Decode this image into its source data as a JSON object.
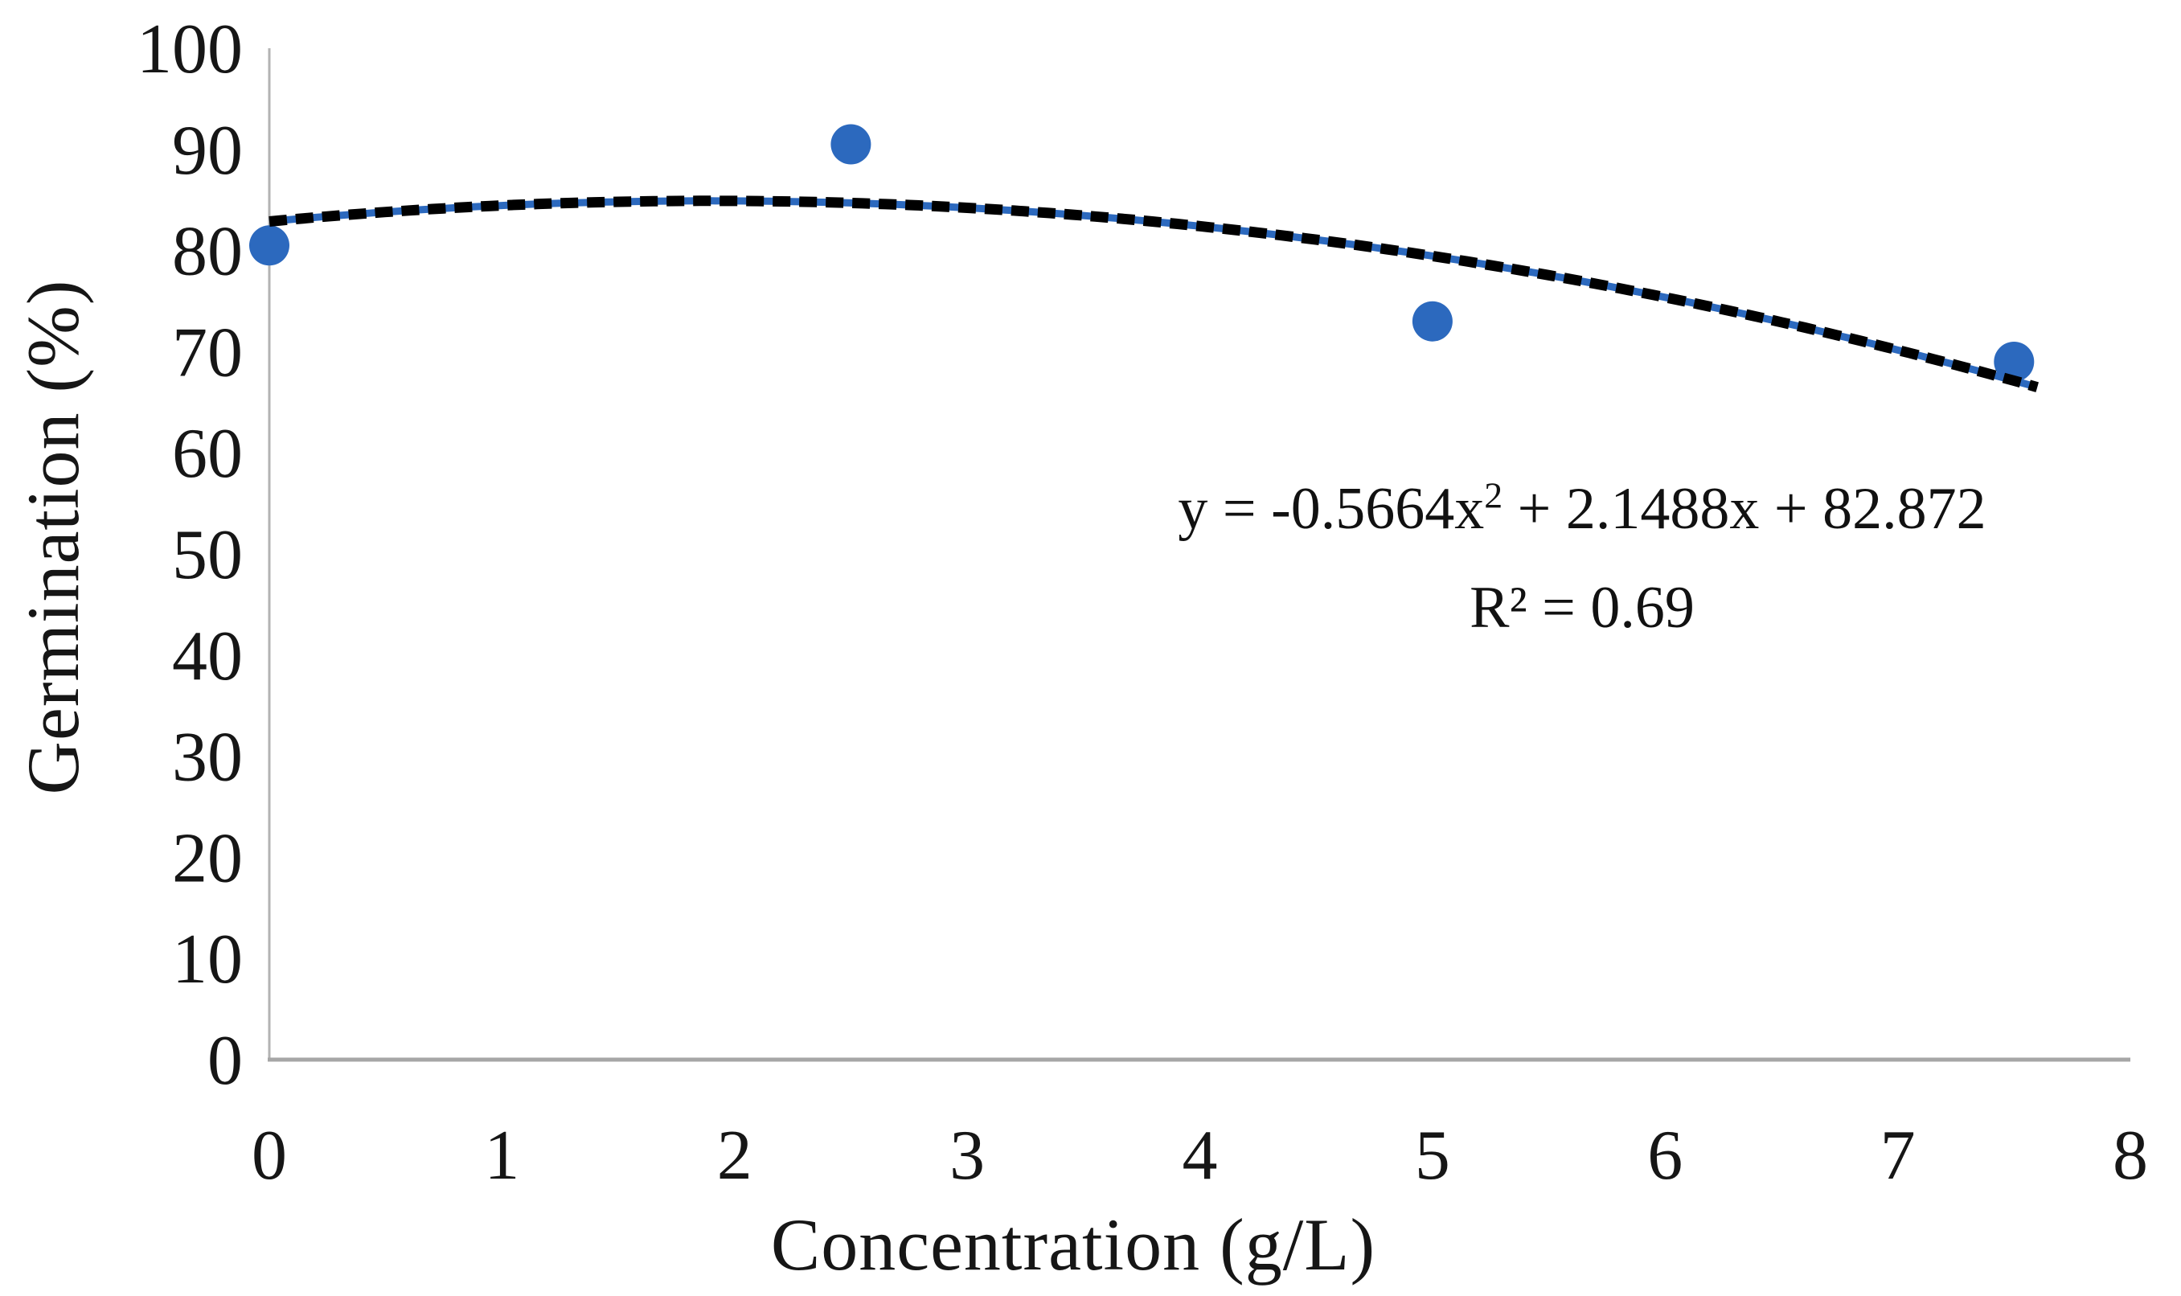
{
  "chart_data": {
    "type": "scatter",
    "title": "",
    "xlabel": "Concentration (g/L)",
    "ylabel": "Germination (%)",
    "xlim": [
      0,
      8
    ],
    "ylim": [
      0,
      100
    ],
    "xticks": [
      0,
      1,
      2,
      3,
      4,
      5,
      6,
      7,
      8
    ],
    "yticks": [
      0,
      10,
      20,
      30,
      40,
      50,
      60,
      70,
      80,
      90,
      100
    ],
    "grid": "off",
    "legend": "none",
    "series": [
      {
        "name": "germination-points",
        "marker": "circle",
        "color": "#2c69be",
        "points": [
          {
            "x": 0,
            "y": 80.5
          },
          {
            "x": 2.5,
            "y": 90.5
          },
          {
            "x": 5,
            "y": 73
          },
          {
            "x": 7.5,
            "y": 69
          }
        ]
      }
    ],
    "trendline": {
      "kind": "polynomial",
      "degree": 2,
      "coefficients": {
        "a": -0.5664,
        "b": 2.1488,
        "c": 82.872
      },
      "x_range": [
        0,
        7.6
      ],
      "style": "dashed",
      "dash_color": "#000000",
      "underlay_color": "#2c69be"
    },
    "annotation": {
      "equation_prefix": "y = -0.5664x",
      "equation_sup": "2",
      "equation_suffix": " + 2.1488x + 82.872",
      "r_squared": "R² = 0.69"
    },
    "colors": {
      "y_axis_line": "#b3b3b3",
      "x_axis_line": "#a6a6a6",
      "tick_text": "#161616",
      "background": "#ffffff"
    }
  }
}
